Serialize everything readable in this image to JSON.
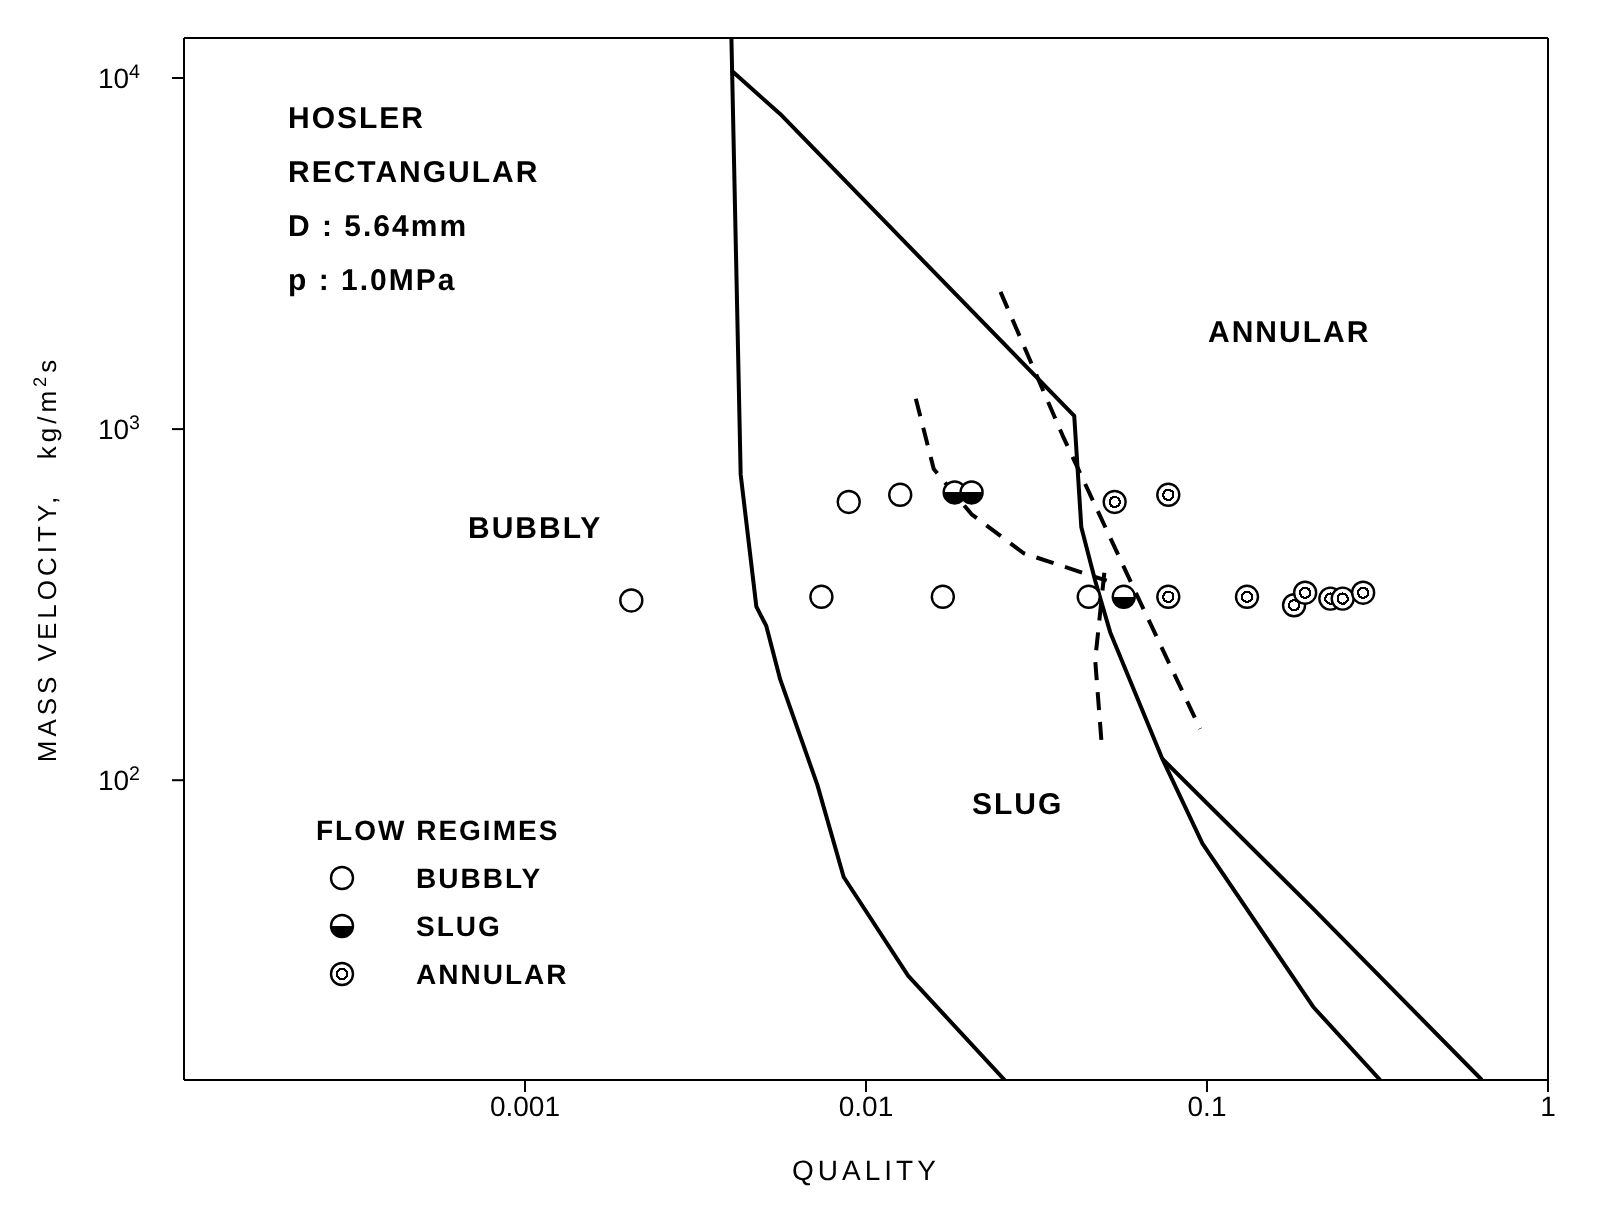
{
  "chart_data": {
    "type": "scatter",
    "xlabel": "QUALITY",
    "ylabel": "MASS VELOCITY,   kg/m$^{2}$s",
    "legend_title": "FLOW REGIMES",
    "legend": "bottom left",
    "log": "xy",
    "grid": false,
    "marker": "circle",
    "xlim": [
      0.0001,
      1
    ],
    "xticks": [
      0.001,
      0.01,
      0.1,
      1
    ],
    "ylim": [
      14,
      13000
    ],
    "yticks": [
      {
        "value": 100,
        "label": "10$^{2}$"
      },
      {
        "value": 1000,
        "label": "10$^{3}$"
      },
      {
        "value": 10000,
        "label": "10$^{4}$"
      }
    ],
    "annotations": [
      "HOSLER",
      "RECTANGULAR",
      "D : 5.64mm",
      "p : 1.0MPa",
      "BUBBLY",
      "SLUG",
      "ANNULAR"
    ],
    "series": [
      {
        "name": "BUBBLY",
        "type": "scatter",
        "color": "#000000",
        "x": [
          0.0089,
          0.0126,
          0.00205,
          0.0074,
          0.0168,
          0.045
        ],
        "values": [
          620,
          650,
          325,
          333,
          333,
          333
        ]
      },
      {
        "name": "SLUG",
        "type": "scatter",
        "color": "#000000",
        "x": [
          0.0182,
          0.0204,
          0.057
        ],
        "values": [
          660,
          660,
          333
        ]
      },
      {
        "name": "ANNULAR",
        "type": "scatter",
        "color": "#000000",
        "x": [
          0.0536,
          0.077,
          0.077,
          0.131,
          0.18,
          0.194,
          0.23,
          0.25,
          0.287
        ],
        "values": [
          620,
          650,
          333,
          333,
          315,
          342,
          329,
          329,
          342
        ]
      },
      {
        "type": "line",
        "color": "#000000",
        "marker": "none",
        "line_style": "solid",
        "x": [
          0.00403,
          0.00429,
          0.00477,
          0.0051,
          0.0056,
          0.0072,
          0.0086,
          0.0133,
          0.0255
        ],
        "values": [
          13000,
          743,
          312,
          275,
          194,
          97,
          53,
          27.7,
          14
        ]
      },
      {
        "type": "line",
        "color": "#000000",
        "marker": "none",
        "line_style": "solid",
        "x": [
          0.00403,
          0.0056,
          0.0408,
          0.0428,
          0.047,
          0.052,
          0.074,
          0.097,
          0.205,
          0.322
        ],
        "values": [
          10500,
          7900,
          1090,
          525,
          370,
          264,
          115,
          66,
          22.6,
          14
        ]
      },
      {
        "type": "line",
        "color": "#000000",
        "marker": "none",
        "line_style": "solid",
        "x": [
          0.074,
          0.205,
          0.64
        ],
        "values": [
          115,
          43,
          14
        ]
      },
      {
        "type": "line",
        "color": "#000000",
        "marker": "none",
        "line_style": "dashed",
        "x": [
          0.014,
          0.0158,
          0.0204,
          0.029,
          0.0508
        ],
        "values": [
          1220,
          770,
          572,
          443,
          370
        ]
      },
      {
        "type": "line",
        "color": "#000000",
        "marker": "none",
        "line_style": "dashed",
        "x": [
          0.05,
          0.047,
          0.049
        ],
        "values": [
          390,
          220,
          130
        ]
      },
      {
        "type": "line",
        "color": "#000000",
        "marker": "none",
        "line_style": "dashed",
        "x": [
          0.0248,
          0.0377,
          0.062,
          0.0955
        ],
        "values": [
          2460,
          960,
          340,
          140
        ]
      }
    ]
  }
}
